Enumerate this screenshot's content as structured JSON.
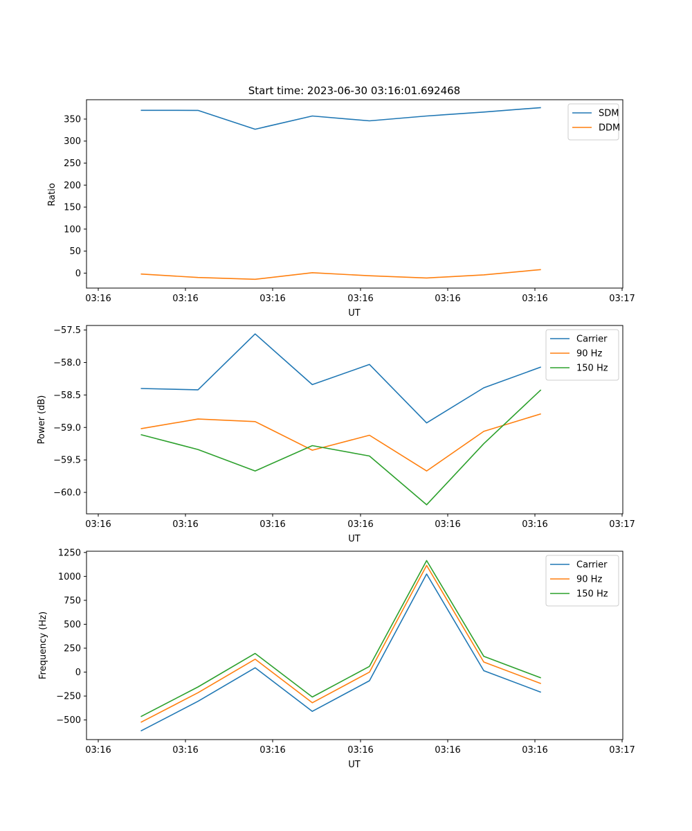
{
  "figure_title": "Start time: 2023-06-30 03:16:01.692468",
  "colors": {
    "series1": "#1f77b4",
    "series2": "#ff7f0e",
    "series3": "#2ca02c",
    "axis": "#000000"
  },
  "chart_data": [
    {
      "type": "line",
      "xlabel": "UT",
      "ylabel": "Ratio",
      "x_tick_labels": [
        "03:16",
        "03:16",
        "03:16",
        "03:16",
        "03:16",
        "03:16",
        "03:17"
      ],
      "y_ticks": [
        0,
        50,
        100,
        150,
        200,
        250,
        300,
        350
      ],
      "y_tick_labels": [
        "0",
        "50",
        "100",
        "150",
        "200",
        "250",
        "300",
        "350"
      ],
      "ylim": [
        -34,
        394
      ],
      "x_samples": 8,
      "legend_position": "top-right",
      "series": [
        {
          "name": "SDM",
          "color": "#1f77b4",
          "values": [
            370,
            369.8,
            327,
            357,
            346,
            357,
            366,
            376
          ]
        },
        {
          "name": "DDM",
          "color": "#ff7f0e",
          "values": [
            -2,
            -10,
            -14,
            1,
            -6,
            -11,
            -4,
            8
          ]
        }
      ]
    },
    {
      "type": "line",
      "xlabel": "UT",
      "ylabel": "Power (dB)",
      "x_tick_labels": [
        "03:16",
        "03:16",
        "03:16",
        "03:16",
        "03:16",
        "03:16",
        "03:17"
      ],
      "y_ticks": [
        -60.0,
        -59.5,
        -59.0,
        -58.5,
        -58.0,
        -57.5
      ],
      "y_tick_labels": [
        "−60.0",
        "−59.5",
        "−59.0",
        "−58.5",
        "−58.0",
        "−57.5"
      ],
      "ylim": [
        -60.33,
        -57.43
      ],
      "x_samples": 8,
      "legend_position": "top-right",
      "series": [
        {
          "name": "Carrier",
          "color": "#1f77b4",
          "values": [
            -58.4,
            -58.42,
            -57.56,
            -58.34,
            -58.03,
            -58.93,
            -58.39,
            -58.07
          ]
        },
        {
          "name": "90 Hz",
          "color": "#ff7f0e",
          "values": [
            -59.02,
            -58.87,
            -58.91,
            -59.35,
            -59.12,
            -59.67,
            -59.06,
            -58.79
          ]
        },
        {
          "name": "150 Hz",
          "color": "#2ca02c",
          "values": [
            -59.11,
            -59.34,
            -59.67,
            -59.28,
            -59.44,
            -60.19,
            -59.25,
            -58.42
          ]
        }
      ]
    },
    {
      "type": "line",
      "xlabel": "UT",
      "ylabel": "Frequency (Hz)",
      "x_tick_labels": [
        "03:16",
        "03:16",
        "03:16",
        "03:16",
        "03:16",
        "03:16",
        "03:17"
      ],
      "y_ticks": [
        -500,
        -250,
        0,
        250,
        500,
        750,
        1000,
        1250
      ],
      "y_tick_labels": [
        "−500",
        "−250",
        "0",
        "250",
        "500",
        "750",
        "1000",
        "1250"
      ],
      "ylim": [
        -705,
        1263
      ],
      "x_samples": 8,
      "legend_position": "top-right",
      "series": [
        {
          "name": "Carrier",
          "color": "#1f77b4",
          "values": [
            -615,
            -305,
            45,
            -410,
            -90,
            1025,
            15,
            -210
          ]
        },
        {
          "name": "90 Hz",
          "color": "#ff7f0e",
          "values": [
            -525,
            -215,
            135,
            -320,
            0,
            1115,
            105,
            -120
          ]
        },
        {
          "name": "150 Hz",
          "color": "#2ca02c",
          "values": [
            -465,
            -155,
            195,
            -260,
            60,
            1165,
            165,
            -60
          ]
        }
      ]
    }
  ]
}
